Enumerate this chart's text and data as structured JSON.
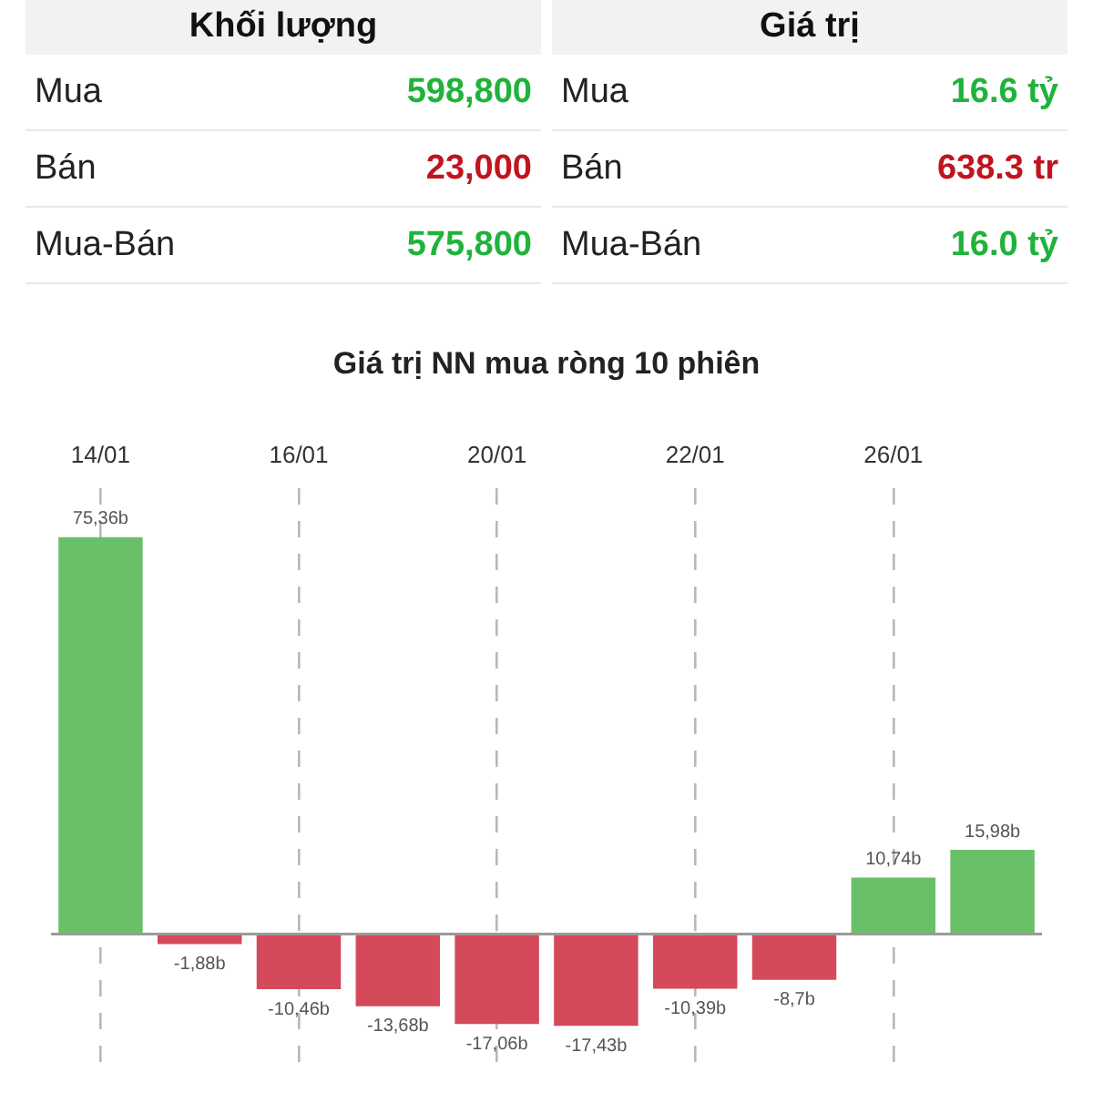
{
  "chart_data": [
    {
      "type": "other",
      "title": "Khối lượng",
      "categories": [
        "Mua",
        "Bán",
        "Mua-Bán"
      ],
      "value_labels": [
        "598,800",
        "23,000",
        "575,800"
      ],
      "colors": [
        "#1fb33a",
        "#c0141e",
        "#1fb33a"
      ]
    },
    {
      "type": "other",
      "title": "Giá trị",
      "categories": [
        "Mua",
        "Bán",
        "Mua-Bán"
      ],
      "value_labels": [
        "16.6 tỷ",
        "638.3 tr",
        "16.0 tỷ"
      ],
      "colors": [
        "#1fb33a",
        "#c0141e",
        "#1fb33a"
      ]
    },
    {
      "type": "bar",
      "title": "Giá trị NN mua ròng 10 phiên",
      "categories": [
        "14/01",
        null,
        "16/01",
        null,
        "20/01",
        null,
        "22/01",
        null,
        "26/01",
        null
      ],
      "values": [
        75.36,
        -1.88,
        -10.46,
        -13.68,
        -17.06,
        -17.43,
        -10.39,
        -8.7,
        10.74,
        15.98
      ],
      "value_labels": [
        "75,36b",
        "-1,88b",
        "-10,46b",
        "-13,68b",
        "-17,06b",
        "-17,43b",
        "-10,39b",
        "-8,7b",
        "10,74b",
        "15,98b"
      ],
      "colors": [
        "#6abf69",
        "#d44a5a",
        "#d44a5a",
        "#d44a5a",
        "#d44a5a",
        "#d44a5a",
        "#d44a5a",
        "#d44a5a",
        "#6abf69",
        "#6abf69"
      ],
      "grid": "x",
      "tick_labels": "x",
      "legend": false
    }
  ]
}
